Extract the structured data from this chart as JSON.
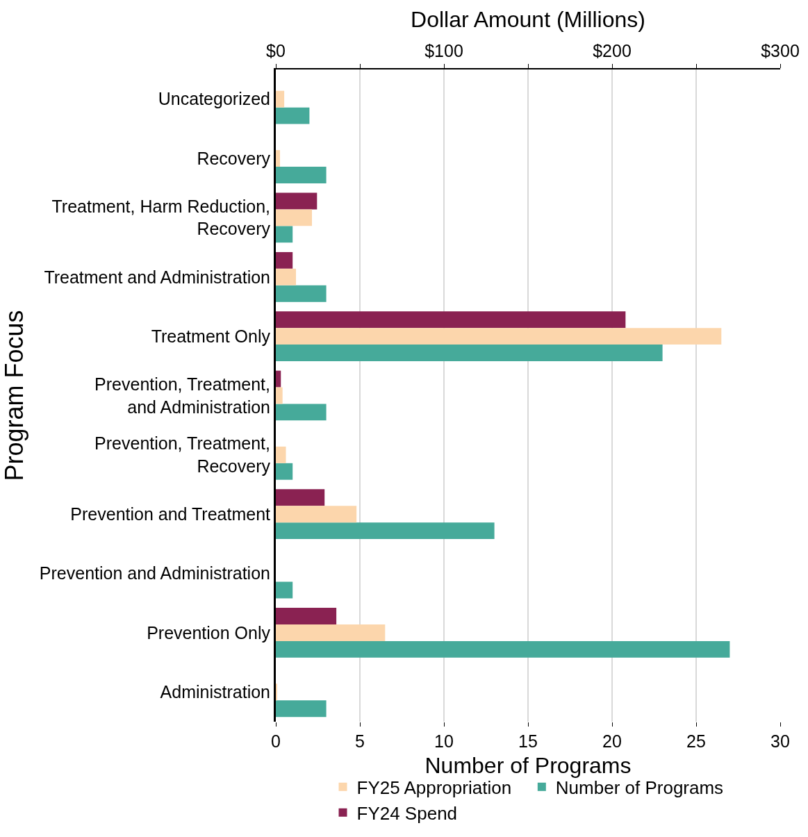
{
  "chart_data": {
    "type": "bar",
    "orientation": "horizontal",
    "categories": [
      "Uncategorized",
      "Recovery",
      "Treatment, Harm Reduction,\nRecovery",
      "Treatment and Administration",
      "Treatment Only",
      "Prevention, Treatment,\nand Administration",
      "Prevention, Treatment,\nRecovery",
      "Prevention and Treatment",
      "Prevention and Administration",
      "Prevention Only",
      "Administration"
    ],
    "series": [
      {
        "name": "FY24 Spend",
        "color": "#8a2252",
        "axis": "x2",
        "values": [
          null,
          null,
          24.5,
          10,
          208,
          3,
          null,
          29,
          null,
          36,
          null
        ]
      },
      {
        "name": "FY25 Appropriation",
        "color": "#fcd6ac",
        "axis": "x2",
        "values": [
          5,
          2.5,
          21.5,
          12,
          265,
          4,
          6,
          48,
          null,
          65,
          0.8
        ]
      },
      {
        "name": "Number of Programs",
        "color": "#46aa9a",
        "values": [
          2,
          3,
          1,
          3,
          23,
          3,
          1,
          13,
          1,
          27,
          3
        ]
      }
    ],
    "xlabel": "Number of Programs",
    "x2label": "Dollar Amount (Millions)",
    "ylabel": "Program Focus",
    "xlim": [
      0,
      30
    ],
    "xticks": [
      0,
      5,
      10,
      15,
      20,
      25,
      30
    ],
    "x2lim": [
      0,
      300
    ],
    "x2ticks": [
      {
        "value": 0,
        "label": "$0"
      },
      {
        "value": 50,
        "label": null
      },
      {
        "value": 100,
        "label": "$100"
      },
      {
        "value": 150,
        "label": null
      },
      {
        "value": 200,
        "label": "$200"
      },
      {
        "value": 250,
        "label": null
      },
      {
        "value": 300,
        "label": "$300"
      }
    ],
    "grid": "x",
    "legend": "bottom"
  }
}
